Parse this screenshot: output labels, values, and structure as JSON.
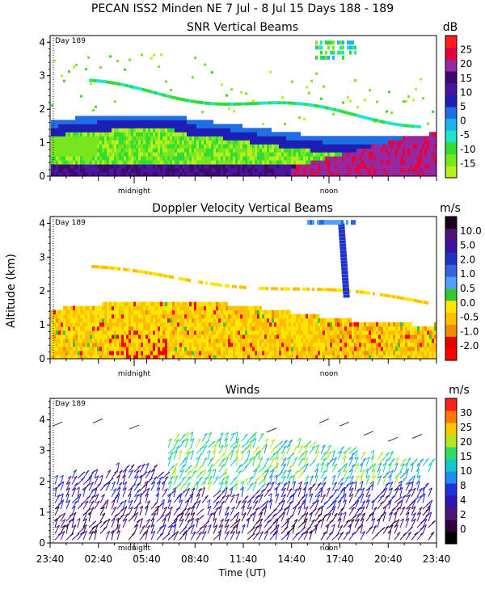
{
  "header": {
    "title": "PECAN ISS2 Minden NE    7 Jul -  8 Jul 15 Days 188 - 189"
  },
  "colors": {
    "snr_scale": [
      "#ff1e1e",
      "#e6003c",
      "#9628a0",
      "#3c0a6e",
      "#4b14a0",
      "#1e1eb4",
      "#1e6ee6",
      "#1eb4f0",
      "#1ee6c8",
      "#32dc32",
      "#78e61e",
      "#b4f01e"
    ],
    "doppler_scale": [
      "#ff0000",
      "#e60000",
      "#f08c00",
      "#ffbe00",
      "#ffe600",
      "#32c832",
      "#50a0ff",
      "#3264dc",
      "#1e32c8",
      "#3c14a0",
      "#501478",
      "#1e001e"
    ],
    "wind_scale": [
      "#000000",
      "#32003c",
      "#501478",
      "#3214b4",
      "#1e32dc",
      "#1e8cf0",
      "#14c8c8",
      "#32dc64",
      "#b4e61e",
      "#fac800",
      "#ff7800",
      "#ff1e1e"
    ]
  },
  "chart_data": [
    {
      "type": "heatmap",
      "title": "SNR Vertical Beams",
      "unit": "dB",
      "ylabel": "",
      "ylim": [
        0,
        4.2
      ],
      "yticks": [
        "0",
        "1",
        "2",
        "3",
        "4"
      ],
      "marker_label": "Day 189",
      "markers": [
        "midnight",
        "noon"
      ],
      "colorbar": [
        "-15",
        "-10",
        "-5",
        "0",
        "5",
        "10",
        "15",
        "20",
        "25"
      ]
    },
    {
      "type": "heatmap",
      "title": "Doppler Velocity Vertical Beams",
      "unit": "m/s",
      "ylabel": "Altitude (km)",
      "ylim": [
        0,
        4.2
      ],
      "yticks": [
        "0",
        "1",
        "2",
        "3",
        "4"
      ],
      "marker_label": "Day 189",
      "markers": [
        "midnight",
        "noon"
      ],
      "colorbar": [
        "-2.0",
        "-1.0",
        "-0.5",
        "0.0",
        "0.5",
        "1.0",
        "2.0",
        "5.0",
        "10.0"
      ]
    },
    {
      "type": "scatter",
      "title": "Winds",
      "unit": "m/s",
      "ylabel": "",
      "ylim": [
        0,
        4.7
      ],
      "yticks": [
        "0",
        "1",
        "2",
        "3",
        "4"
      ],
      "marker_label": "Day 189",
      "markers": [
        "midnight",
        "noon"
      ],
      "colorbar": [
        "0",
        "2",
        "4",
        "8",
        "10",
        "15",
        "20",
        "25",
        "30"
      ],
      "xticks": [
        "23:40",
        "02:40",
        "05:40",
        "08:40",
        "11:40",
        "14:40",
        "17:40",
        "20:40",
        "23:40"
      ],
      "xlabel": "Time (UT)"
    }
  ]
}
